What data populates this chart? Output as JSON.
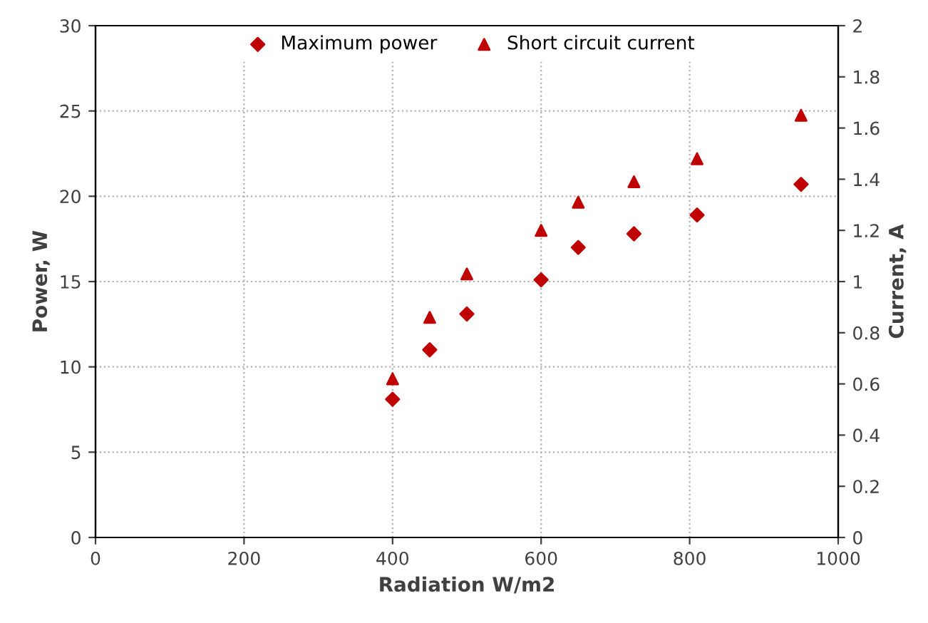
{
  "chart_data": {
    "type": "scatter",
    "xlabel": "Radiation W/m2",
    "ylabel": "Power, W",
    "y2label": "Current, A",
    "xlim": [
      0,
      1000
    ],
    "xticks": [
      0,
      200,
      400,
      600,
      800,
      1000
    ],
    "ylim": [
      0,
      30
    ],
    "yticks": [
      0,
      5,
      10,
      15,
      20,
      25,
      30
    ],
    "y2lim": [
      0,
      2
    ],
    "y2ticks": [
      0,
      0.2,
      0.4,
      0.6,
      0.8,
      1,
      1.2,
      1.4,
      1.6,
      1.8,
      2
    ],
    "grid": true,
    "legend": "top",
    "series": [
      {
        "name": "Maximum power",
        "color": "#c00000",
        "marker": "diamond",
        "x": [
          400,
          450,
          500,
          600,
          650,
          725,
          810,
          950
        ],
        "values": [
          8.1,
          11.0,
          13.1,
          15.1,
          17.0,
          17.8,
          18.9,
          20.7
        ]
      },
      {
        "name": "Short circuit current",
        "color": "#c00000",
        "marker": "triangle",
        "axis": "y2",
        "x": [
          400,
          450,
          500,
          600,
          650,
          725,
          810,
          950
        ],
        "values": [
          0.62,
          0.86,
          1.03,
          1.2,
          1.31,
          1.39,
          1.48,
          1.65
        ]
      }
    ]
  }
}
